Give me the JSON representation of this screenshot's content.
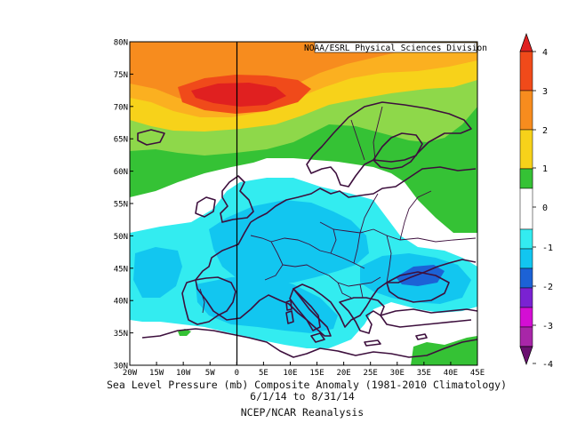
{
  "credit": "NOAA/ESRL Physical Sciences Division",
  "lat_labels": [
    "80N",
    "75N",
    "70N",
    "65N",
    "60N",
    "55N",
    "50N",
    "45N",
    "40N",
    "35N",
    "30N"
  ],
  "lon_labels": [
    "20W",
    "15W",
    "10W",
    "5W",
    "0",
    "5E",
    "10E",
    "15E",
    "20E",
    "25E",
    "30E",
    "35E",
    "40E",
    "45E"
  ],
  "colorbar": {
    "labels": [
      "4",
      "3",
      "2",
      "1",
      "0",
      "-1",
      "-2",
      "-3",
      "-4"
    ],
    "colors": {
      "dark_red": "#e02020",
      "orange_red": "#f04a1a",
      "orange": "#f78c1e",
      "amber": "#fbb020",
      "yellow": "#f7d21a",
      "light_green": "#8ed84a",
      "green": "#35c235",
      "white": "#ffffff",
      "light_cyan": "#33ecf0",
      "cyan": "#12c6f0",
      "blue": "#1c62d6",
      "purple": "#7a22d2",
      "magenta": "#d40ed4",
      "violet": "#a826a8",
      "dark_purple": "#6a1070"
    }
  },
  "caption": {
    "line1": "Sea Level Pressure (mb) Composite Anomaly (1981-2010 Climatology)",
    "line2": "6/1/14 to 8/31/14",
    "line3": "NCEP/NCAR Reanalysis"
  }
}
